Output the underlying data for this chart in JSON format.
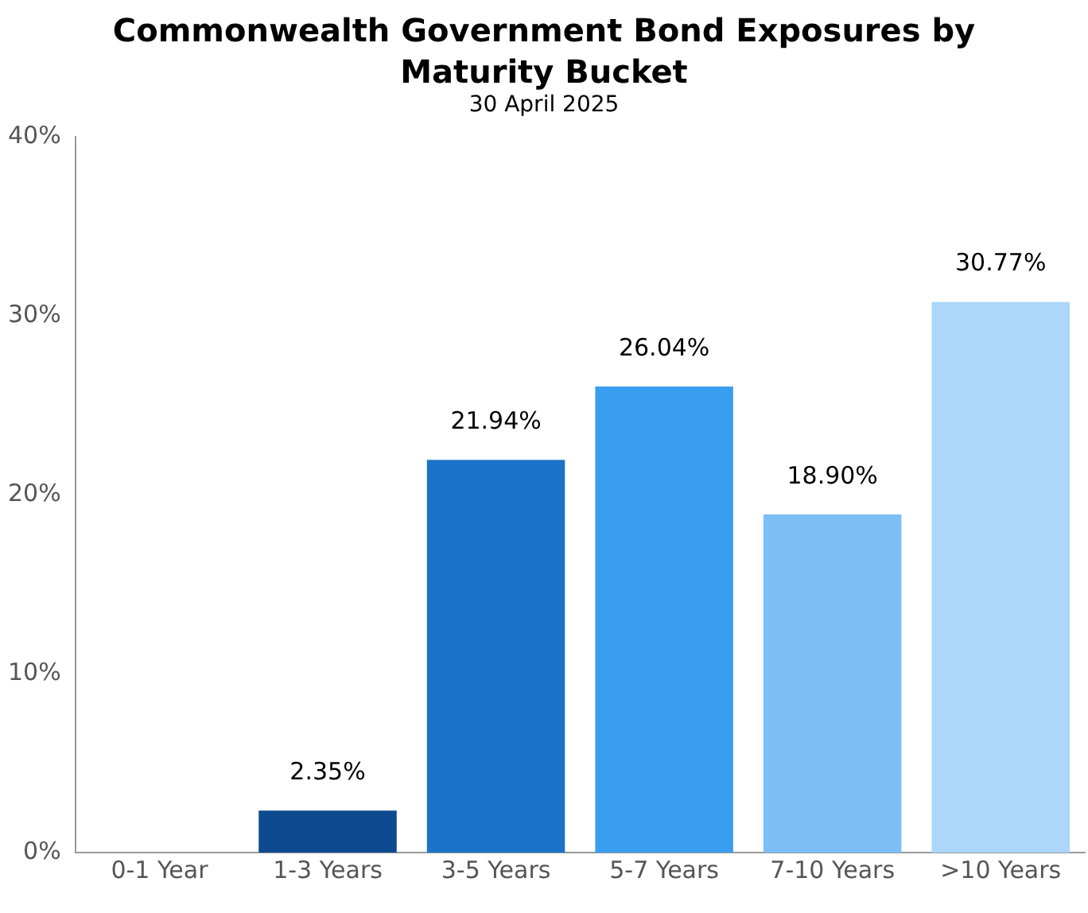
{
  "chart_data": {
    "type": "bar",
    "title": "Commonwealth Government Bond Exposures by Maturity Bucket",
    "subtitle": "30 April 2025",
    "categories": [
      "0-1 Year",
      "1-3 Years",
      "3-5 Years",
      "5-7 Years",
      "7-10 Years",
      ">10 Years"
    ],
    "values": [
      0,
      2.35,
      21.94,
      26.04,
      18.9,
      30.77
    ],
    "colors": [
      "#0d4a8f",
      "#0d4a8f",
      "#1a73c9",
      "#3a9ef0",
      "#7bbff5",
      "#acd6fa"
    ],
    "value_labels": [
      null,
      "2.35%",
      "21.94%",
      "26.04%",
      "18.90%",
      "30.77%"
    ],
    "ylim": [
      0,
      40
    ],
    "yticks": [
      {
        "value": 0,
        "label": "0%"
      },
      {
        "value": 10,
        "label": "10%"
      },
      {
        "value": 20,
        "label": "20%"
      },
      {
        "value": 30,
        "label": "30%"
      },
      {
        "value": 40,
        "label": "40%"
      }
    ],
    "grid": false,
    "legend": false
  }
}
